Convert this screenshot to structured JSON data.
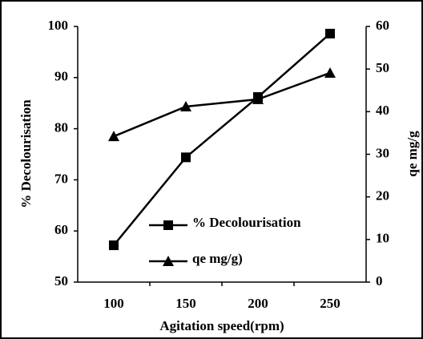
{
  "chart_data": {
    "type": "line",
    "x_label": "Agitation speed(rpm)",
    "y_label": "% Decolourisation",
    "y2_label": "qe mg/g",
    "categories": [
      "100",
      "150",
      "200",
      "250"
    ],
    "series": [
      {
        "name": "% Decolourisation",
        "color": "#000000",
        "marker": "square",
        "values": [
          57.2,
          74.4,
          86.2,
          98.6
        ]
      },
      {
        "name": "qe mg/g)",
        "color": "#000000",
        "marker": "triangle",
        "axis": "y2",
        "values": [
          34.2,
          41.2,
          42.9,
          49.1
        ]
      }
    ],
    "ylim": [
      50,
      100
    ],
    "yticks": [
      50,
      60,
      70,
      80,
      90,
      100
    ],
    "y2lim": [
      0,
      60
    ],
    "y2ticks": [
      0,
      10,
      20,
      30,
      40,
      50,
      60
    ],
    "grid": false
  }
}
